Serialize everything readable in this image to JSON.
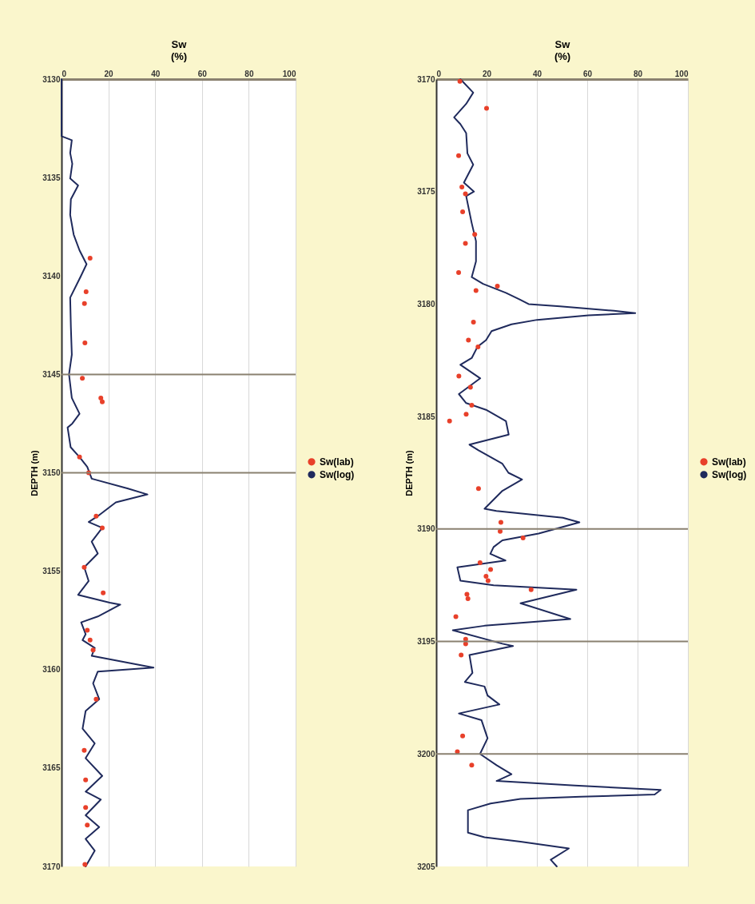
{
  "chart_data": [
    {
      "type": "line",
      "xlabel": "Sw\n(%)",
      "ylabel": "DEPTH (m)",
      "xlim": [
        0,
        100
      ],
      "xticks": [
        0,
        20,
        40,
        60,
        80,
        100
      ],
      "ylim": [
        3170,
        3130
      ],
      "yticks": [
        3130,
        3135,
        3140,
        3145,
        3150,
        3155,
        3160,
        3165,
        3170
      ],
      "grid": "x",
      "legend": "right",
      "ref_lines": [
        {
          "axis": "y",
          "value": 3145,
          "color": "#8a8170"
        },
        {
          "axis": "y",
          "value": 3150,
          "color": "#8a8170"
        }
      ],
      "series": [
        {
          "name": "Sw(lab)",
          "type": "scatter",
          "marker": "circle",
          "color": "#e8402a",
          "x": [
            12.2,
            10.5,
            9.8,
            10,
            8.9,
            16.8,
            17.4,
            7.7,
            11.6,
            14.8,
            17.4,
            9.7,
            17.8,
            11,
            12.2,
            13.5,
            14.8,
            9.7,
            10.3,
            10.3,
            11,
            10
          ],
          "values": [
            3139.1,
            3140.8,
            3141.4,
            3143.4,
            3145.2,
            3146.2,
            3146.4,
            3149.2,
            3150,
            3152.2,
            3152.8,
            3154.8,
            3156.1,
            3158,
            3158.5,
            3159,
            3161.5,
            3164.1,
            3165.6,
            3167,
            3167.9,
            3169.9
          ]
        },
        {
          "name": "Sw(log)",
          "type": "line",
          "color": "#1f2a5c",
          "x": [
            0,
            0,
            2.2,
            4.4,
            3.7,
            4.6,
            3.7,
            7.1,
            4,
            3.7,
            5.2,
            7.7,
            10.7,
            8.3,
            3.7,
            4,
            4.4,
            3.2,
            4.4,
            7.7,
            4.6,
            2.6,
            3.9,
            7.7,
            11,
            12.9,
            28.4,
            36.7,
            23.2,
            15.5,
            11.6,
            17.4,
            12.9,
            15.5,
            9.7,
            11.6,
            7.1,
            20.6,
            25.1,
            15.5,
            8.4,
            10.3,
            9,
            14.2,
            12.9,
            39.3,
            15.5,
            13.5,
            16.1,
            10.3,
            9,
            14.2,
            10.3,
            17.4,
            10.3,
            16.8,
            10.3,
            16.1,
            10.3,
            14.2,
            10.3
          ],
          "values": [
            3130,
            3132.9,
            3133,
            3133.1,
            3133.75,
            3134.3,
            3135.05,
            3135.4,
            3136.1,
            3136.9,
            3137.9,
            3138.7,
            3139.4,
            3140,
            3141.1,
            3142.6,
            3144,
            3145,
            3146.2,
            3147,
            3147.5,
            3147.7,
            3148.7,
            3149.2,
            3149.7,
            3150.3,
            3150.8,
            3151.1,
            3151.5,
            3152.2,
            3152.5,
            3152.8,
            3153.5,
            3154.1,
            3154.8,
            3155.5,
            3156.2,
            3156.6,
            3156.7,
            3157.3,
            3157.6,
            3158.2,
            3158.5,
            3158.9,
            3159.3,
            3159.9,
            3160.1,
            3160.7,
            3161.5,
            3162.1,
            3163,
            3163.75,
            3164.5,
            3165.4,
            3166.2,
            3166.6,
            3167.4,
            3168,
            3168.6,
            3169.2,
            3170
          ]
        }
      ]
    },
    {
      "type": "line",
      "xlabel": "Sw\n(%)",
      "ylabel": "DEPTH (m)",
      "xlim": [
        0,
        100
      ],
      "xticks": [
        0,
        20,
        40,
        60,
        80,
        100
      ],
      "ylim": [
        3205,
        3170
      ],
      "yticks": [
        3170,
        3175,
        3180,
        3185,
        3190,
        3195,
        3200,
        3205
      ],
      "grid": "x",
      "legend": "right",
      "ref_lines": [
        {
          "axis": "y",
          "value": 3190,
          "color": "#8a8170"
        },
        {
          "axis": "y",
          "value": 3195,
          "color": "#8a8170"
        },
        {
          "axis": "y",
          "value": 3200,
          "color": "#8a8170"
        }
      ],
      "series": [
        {
          "name": "Sw(lab)",
          "type": "scatter",
          "marker": "circle",
          "color": "#e8402a",
          "x": [
            9.4,
            20,
            8.9,
            10.2,
            11.6,
            10.5,
            15.3,
            11.6,
            8.9,
            24.3,
            15.8,
            14.8,
            12.8,
            16.6,
            9,
            13.6,
            14.1,
            11.9,
            5.3,
            16.8,
            25.7,
            25.4,
            34.5,
            17.4,
            21.6,
            19.8,
            20.6,
            37.7,
            12.2,
            12.6,
            7.8,
            11.7,
            11.7,
            9.9,
            10.5,
            8.4,
            14.1
          ],
          "values": [
            3170.1,
            3171.3,
            3173.4,
            3174.8,
            3175.1,
            3175.9,
            3176.9,
            3177.3,
            3178.6,
            3179.2,
            3179.4,
            3180.8,
            3181.6,
            3181.9,
            3183.2,
            3183.7,
            3184.5,
            3184.9,
            3185.2,
            3188.2,
            3189.7,
            3190.1,
            3190.4,
            3191.5,
            3191.8,
            3192.1,
            3192.3,
            3192.7,
            3192.9,
            3193.1,
            3193.9,
            3194.9,
            3195.1,
            3195.6,
            3199.2,
            3199.9,
            3200.5
          ]
        },
        {
          "name": "Sw(log)",
          "type": "line",
          "color": "#1f2a5c",
          "x": [
            9.6,
            14.7,
            11.9,
            7.1,
            9.6,
            11.9,
            12.4,
            14.7,
            11,
            15,
            11.9,
            14.1,
            15.8,
            15.8,
            14.1,
            18.6,
            27.7,
            33.3,
            36.7,
            49.2,
            70.6,
            79.1,
            60.5,
            40.1,
            29.9,
            22,
            19.8,
            16.4,
            14.1,
            9.6,
            17.5,
            9,
            11.9,
            19.8,
            27.7,
            28.8,
            13.2,
            16.8,
            26.3,
            28.7,
            34.1,
            26.3,
            19.2,
            23.9,
            50.3,
            56.9,
            40.7,
            26.3,
            22.8,
            21.5,
            27.5,
            8.4,
            9.6,
            22.8,
            55.7,
            33.5,
            53.3,
            19.2,
            6.6,
            26.3,
            30.5,
            13.2,
            14.4,
            11.4,
            19.2,
            20.4,
            25.1,
            9,
            18,
            20.4,
            17.4,
            24,
            29.9,
            24,
            55.1,
            89.2,
            86.8,
            57.5,
            33.5,
            21.6,
            12.6,
            12.6,
            19.2,
            33.5,
            52.7,
            45.5,
            47.9
          ],
          "values": [
            3170,
            3170.6,
            3171.1,
            3171.7,
            3172,
            3172.4,
            3173.3,
            3173.8,
            3174.6,
            3175,
            3175.2,
            3176.4,
            3177.2,
            3178.1,
            3178.8,
            3179.1,
            3179.5,
            3179.8,
            3180,
            3180.1,
            3180.3,
            3180.4,
            3180.5,
            3180.7,
            3180.9,
            3181.2,
            3181.6,
            3181.9,
            3182.4,
            3182.7,
            3183.3,
            3184,
            3184.4,
            3184.7,
            3185.2,
            3185.8,
            3186.25,
            3186.5,
            3187.1,
            3187.5,
            3187.8,
            3188.3,
            3189.1,
            3189.2,
            3189.5,
            3189.7,
            3190.2,
            3190.5,
            3190.8,
            3191.1,
            3191.4,
            3191.7,
            3192.3,
            3192.5,
            3192.7,
            3193.3,
            3194,
            3194.3,
            3194.5,
            3195.1,
            3195.2,
            3195.6,
            3196.4,
            3196.8,
            3197,
            3197.4,
            3197.8,
            3198.2,
            3198.5,
            3199.3,
            3200,
            3200.5,
            3200.9,
            3201.2,
            3201.4,
            3201.6,
            3201.8,
            3201.9,
            3202,
            3202.2,
            3202.5,
            3203.5,
            3203.7,
            3203.9,
            3204.2,
            3204.7,
            3205
          ]
        }
      ]
    }
  ]
}
